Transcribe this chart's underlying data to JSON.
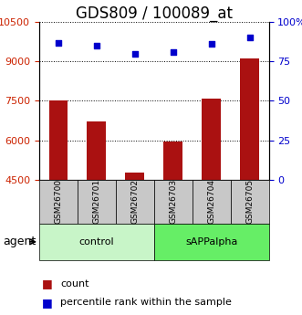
{
  "title": "GDS809 / 100089_at",
  "categories": [
    "GSM26700",
    "GSM26701",
    "GSM26702",
    "GSM26703",
    "GSM26704",
    "GSM26705"
  ],
  "groups": [
    "control",
    "control",
    "control",
    "sAPPalpha",
    "sAPPalpha",
    "sAPPalpha"
  ],
  "group_colors": {
    "control": "#c8f5c8",
    "sAPPalpha": "#66ee66"
  },
  "bar_values": [
    7500,
    6700,
    4750,
    5950,
    7600,
    9100
  ],
  "scatter_values": [
    87,
    85,
    80,
    81,
    86,
    90
  ],
  "bar_color": "#aa1111",
  "scatter_color": "#0000cc",
  "ylim_left": [
    4500,
    10500
  ],
  "ylim_right": [
    0,
    100
  ],
  "yticks_left": [
    4500,
    6000,
    7500,
    9000,
    10500
  ],
  "yticks_right": [
    0,
    25,
    50,
    75,
    100
  ],
  "ylabel_left_color": "#cc2200",
  "ylabel_right_color": "#0000cc",
  "bar_width": 0.5,
  "agent_label": "agent",
  "group_label_control": "control",
  "group_label_sapp": "sAPPalpha",
  "title_fontsize": 12,
  "tick_fontsize": 8,
  "legend_fontsize": 8,
  "grey_color": "#c8c8c8"
}
